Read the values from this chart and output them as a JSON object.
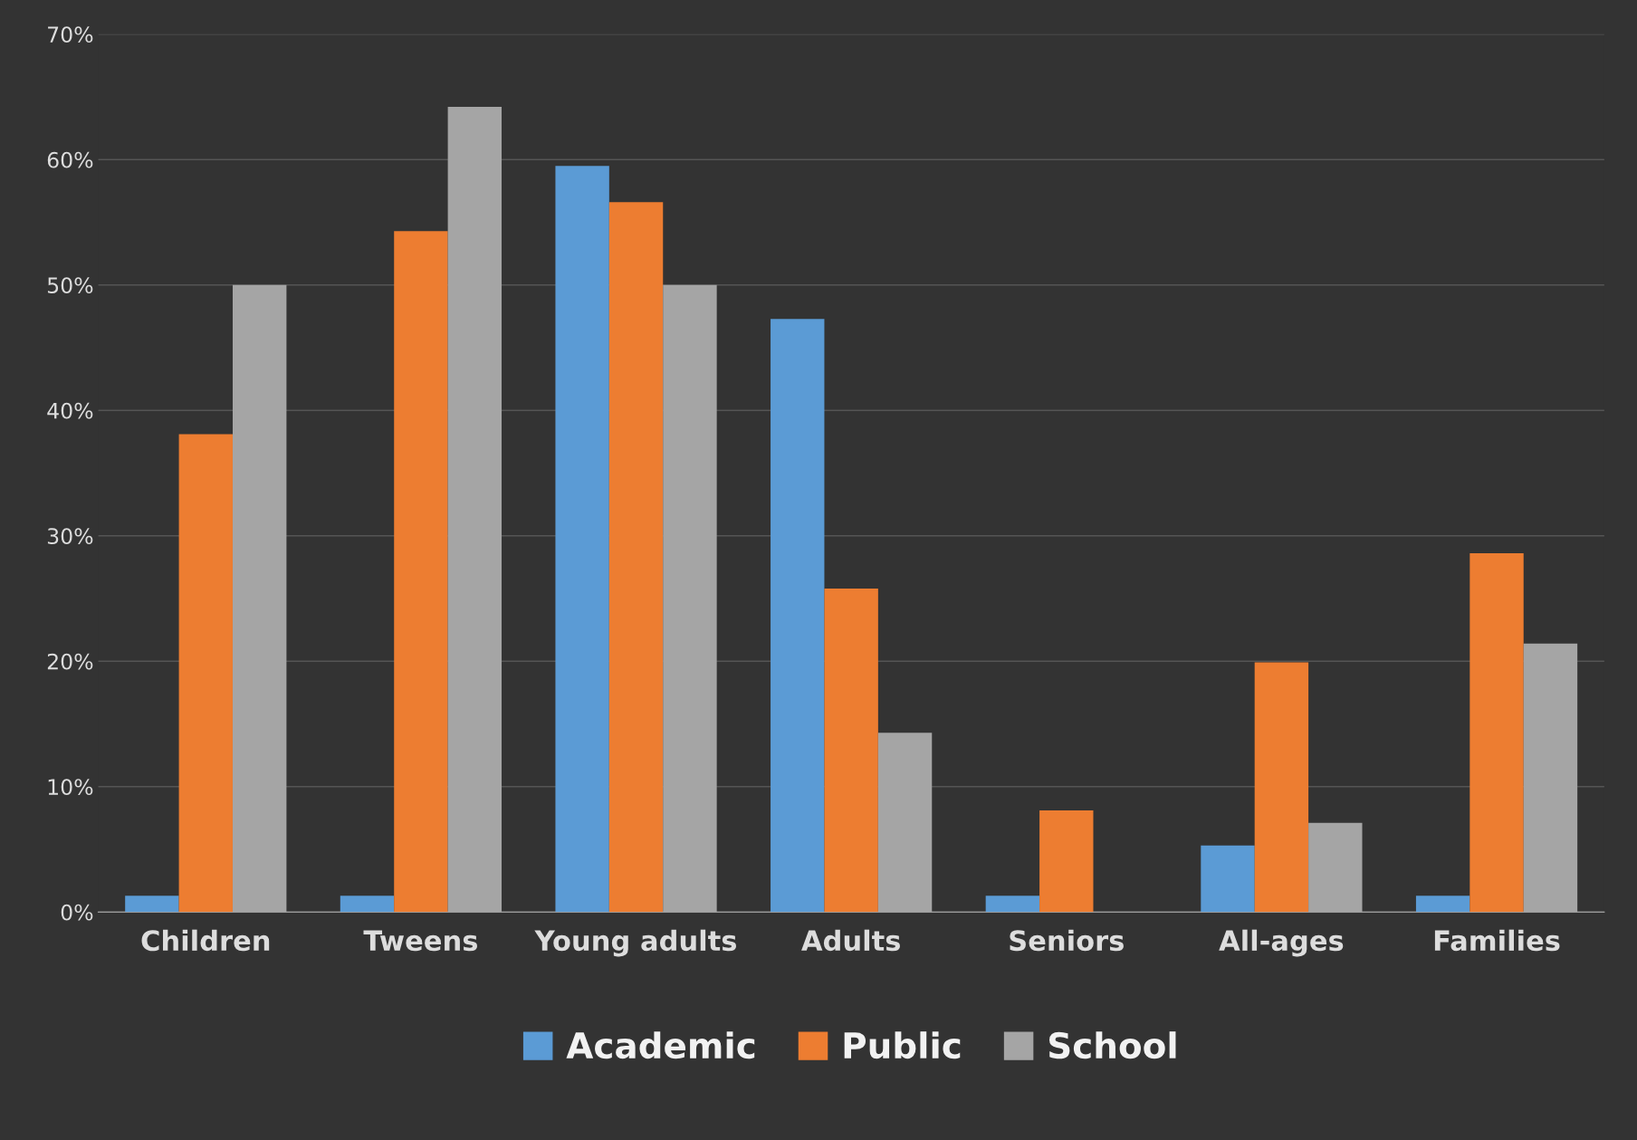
{
  "chart_data": {
    "type": "bar",
    "categories": [
      "Children",
      "Tweens",
      "Young adults",
      "Adults",
      "Seniors",
      "All-ages",
      "Families"
    ],
    "series": [
      {
        "name": "Academic",
        "color": "#5b9bd5",
        "values": [
          1.3,
          1.3,
          59.5,
          47.3,
          1.3,
          5.3,
          1.3
        ]
      },
      {
        "name": "Public",
        "color": "#ed7d31",
        "values": [
          38.1,
          54.3,
          56.6,
          25.8,
          8.1,
          19.9,
          28.6
        ]
      },
      {
        "name": "School",
        "color": "#a5a5a5",
        "values": [
          50.0,
          64.2,
          50.0,
          14.3,
          0,
          7.1,
          21.4
        ]
      }
    ],
    "ylim": [
      0,
      70
    ],
    "yticks": [
      {
        "value": 0,
        "label": "0%"
      },
      {
        "value": 10,
        "label": "10%"
      },
      {
        "value": 20,
        "label": "20%"
      },
      {
        "value": 30,
        "label": "30%"
      },
      {
        "value": 40,
        "label": "40%"
      },
      {
        "value": 50,
        "label": "50%"
      },
      {
        "value": 60,
        "label": "60%"
      },
      {
        "value": 70,
        "label": "70%"
      }
    ],
    "grid": "y",
    "legend": "bottom"
  }
}
